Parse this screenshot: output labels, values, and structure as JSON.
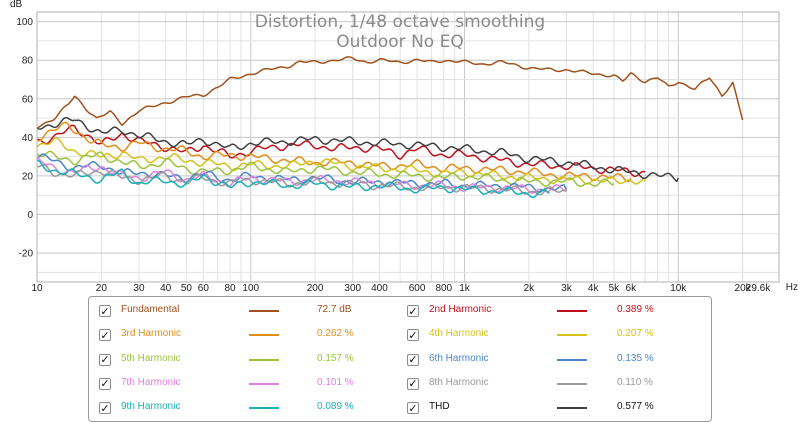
{
  "chart_data": {
    "type": "line",
    "title": "Distortion, 1/48 octave smoothing",
    "subtitle": "Outdoor No EQ",
    "y_unit": "dB",
    "x_unit": "Hz",
    "x_scale": "log",
    "xlim": [
      10,
      29600
    ],
    "ylim": [
      -35,
      105
    ],
    "y_ticks": [
      100,
      80,
      60,
      40,
      20,
      0,
      -20
    ],
    "x_ticks": [
      10,
      20,
      30,
      40,
      50,
      60,
      80,
      100,
      200,
      300,
      400,
      600,
      800,
      1000,
      2000,
      3000,
      4000,
      5000,
      6000,
      10000,
      20000,
      29600
    ],
    "x_tick_labels": [
      "10",
      "20",
      "30",
      "40",
      "50",
      "60",
      "80",
      "100",
      "200",
      "300",
      "400",
      "600",
      "800",
      "1k",
      "2k",
      "3k",
      "4k",
      "5k",
      "6k",
      "10k",
      "20k",
      "29.6k"
    ],
    "grid": true,
    "legend_position": "bottom",
    "series": [
      {
        "name": "Fundamental",
        "color": "#a0521c",
        "x": [
          10,
          12,
          14,
          15,
          17,
          19,
          22,
          25,
          30,
          35,
          40,
          50,
          60,
          70,
          80,
          100,
          120,
          150,
          170,
          200,
          250,
          300,
          350,
          400,
          500,
          600,
          700,
          800,
          1000,
          1200,
          1500,
          2000,
          2500,
          3000,
          4000,
          5000,
          5500,
          6000,
          7000,
          8000,
          9000,
          10000,
          12000,
          14000,
          16000,
          18000,
          20000
        ],
        "y": [
          45,
          50,
          57,
          61,
          55,
          50,
          53,
          47,
          54,
          56,
          58,
          61,
          62,
          66,
          70,
          73,
          75,
          77,
          79,
          79,
          80,
          81,
          79,
          80,
          79,
          80,
          79,
          80,
          79,
          78,
          79,
          76,
          75,
          75,
          73,
          72,
          69,
          73,
          69,
          71,
          66,
          69,
          65,
          71,
          62,
          68,
          49
        ]
      },
      {
        "name": "2nd Harmonic",
        "color": "#c0101c",
        "x": [
          10,
          12,
          15,
          18,
          20,
          25,
          30,
          40,
          50,
          60,
          80,
          100,
          150,
          200,
          250,
          300,
          400,
          500,
          600,
          800,
          1000,
          1500,
          2000,
          3000,
          4000,
          5000,
          6000,
          7000
        ],
        "y": [
          38,
          40,
          45,
          40,
          36,
          42,
          38,
          35,
          32,
          36,
          30,
          33,
          36,
          36,
          34,
          35,
          34,
          31,
          34,
          31,
          31,
          28,
          26,
          25,
          24,
          23,
          22,
          22
        ]
      },
      {
        "name": "3rd Harmonic",
        "color": "#e08e1a",
        "x": [
          10,
          12,
          14,
          16,
          18,
          20,
          25,
          30,
          40,
          50,
          60,
          80,
          100,
          150,
          200,
          300,
          400,
          600,
          800,
          1000,
          1500,
          2000,
          3000,
          4000,
          5000,
          6000
        ],
        "y": [
          40,
          44,
          46,
          42,
          38,
          36,
          35,
          37,
          34,
          33,
          30,
          31,
          30,
          28,
          27,
          27,
          25,
          26,
          24,
          24,
          23,
          22,
          20,
          20,
          19,
          19
        ]
      },
      {
        "name": "4th Harmonic",
        "color": "#d4c21a",
        "x": [
          10,
          12,
          15,
          20,
          25,
          30,
          40,
          50,
          60,
          80,
          100,
          150,
          200,
          300,
          400,
          600,
          800,
          1000,
          1500,
          2000,
          3000,
          4000,
          5000,
          6000,
          7000
        ],
        "y": [
          36,
          38,
          33,
          30,
          32,
          28,
          30,
          28,
          27,
          25,
          26,
          25,
          28,
          25,
          24,
          23,
          21,
          22,
          20,
          19,
          18,
          18,
          17,
          18,
          17
        ]
      },
      {
        "name": "5th Harmonic",
        "color": "#9cc43a",
        "x": [
          10,
          12,
          15,
          20,
          25,
          30,
          40,
          50,
          60,
          80,
          100,
          150,
          200,
          300,
          400,
          600,
          800,
          1000,
          1500,
          2000,
          3000,
          4000,
          5000
        ],
        "y": [
          32,
          30,
          28,
          31,
          27,
          25,
          27,
          24,
          22,
          23,
          25,
          22,
          24,
          22,
          21,
          20,
          19,
          20,
          18,
          17,
          17,
          16,
          16
        ]
      },
      {
        "name": "6th Harmonic",
        "color": "#4a86c8",
        "x": [
          10,
          12,
          15,
          20,
          25,
          30,
          40,
          50,
          60,
          80,
          100,
          150,
          200,
          300,
          400,
          600,
          800,
          1000,
          1500,
          2000,
          3000
        ],
        "y": [
          30,
          28,
          24,
          26,
          21,
          22,
          20,
          19,
          21,
          18,
          20,
          18,
          19,
          17,
          17,
          16,
          16,
          15,
          15,
          14,
          13
        ]
      },
      {
        "name": "7th Harmonic",
        "color": "#e080e0",
        "x": [
          10,
          12,
          15,
          20,
          25,
          30,
          40,
          50,
          60,
          80,
          100,
          150,
          200,
          300,
          400,
          600,
          800,
          1000,
          1500,
          2000,
          2500,
          3000
        ],
        "y": [
          28,
          24,
          22,
          25,
          20,
          19,
          22,
          18,
          20,
          16,
          19,
          17,
          18,
          17,
          16,
          15,
          15,
          14,
          14,
          13,
          13,
          13
        ]
      },
      {
        "name": "8th Harmonic",
        "color": "#9a9a9a",
        "x": [
          10,
          12,
          15,
          20,
          25,
          30,
          40,
          50,
          60,
          80,
          100,
          150,
          200,
          300,
          400,
          600,
          800,
          1000,
          1500,
          2000,
          2500,
          3000
        ],
        "y": [
          25,
          22,
          20,
          23,
          19,
          18,
          20,
          17,
          19,
          16,
          18,
          16,
          17,
          16,
          15,
          14,
          14,
          14,
          13,
          12,
          12,
          12
        ]
      },
      {
        "name": "9th Harmonic",
        "color": "#1ab0b8",
        "x": [
          10,
          12,
          15,
          20,
          25,
          30,
          40,
          50,
          60,
          80,
          100,
          150,
          200,
          300,
          400,
          600,
          800,
          1000,
          1500,
          2000,
          2500
        ],
        "y": [
          26,
          23,
          21,
          18,
          22,
          16,
          18,
          15,
          20,
          14,
          17,
          15,
          16,
          14,
          15,
          13,
          14,
          13,
          12,
          11,
          11
        ]
      },
      {
        "name": "THD",
        "color": "#404040",
        "x": [
          10,
          12,
          15,
          18,
          20,
          25,
          30,
          40,
          50,
          60,
          80,
          100,
          150,
          200,
          300,
          400,
          600,
          800,
          1000,
          1500,
          2000,
          3000,
          4000,
          5000,
          6000,
          7000,
          8000,
          10000
        ],
        "y": [
          45,
          47,
          49,
          45,
          42,
          44,
          41,
          38,
          36,
          39,
          34,
          37,
          38,
          39,
          38,
          37,
          36,
          35,
          34,
          32,
          29,
          27,
          25,
          23,
          22,
          21,
          20,
          19
        ]
      }
    ]
  },
  "legend": {
    "items": [
      {
        "label": "Fundamental",
        "value": "72.7 dB",
        "color": "#a0521c",
        "checked": true
      },
      {
        "label": "2nd Harmonic",
        "value": "0.389 %",
        "color": "#c0101c",
        "checked": true
      },
      {
        "label": "3rd Harmonic",
        "value": "0.262 %",
        "color": "#e08e1a",
        "checked": true
      },
      {
        "label": "4th Harmonic",
        "value": "0.207 %",
        "color": "#d4c21a",
        "checked": true
      },
      {
        "label": "5th Harmonic",
        "value": "0.157 %",
        "color": "#9cc43a",
        "checked": true
      },
      {
        "label": "6th Harmonic",
        "value": "0.135 %",
        "color": "#4a86c8",
        "checked": true
      },
      {
        "label": "7th Harmonic",
        "value": "0.101 %",
        "color": "#e080e0",
        "checked": true
      },
      {
        "label": "8th Harmonic",
        "value": "0.110 %",
        "color": "#9a9a9a",
        "checked": true
      },
      {
        "label": "9th Harmonic",
        "value": "0.089 %",
        "color": "#1ab0b8",
        "checked": true
      },
      {
        "label": "THD",
        "value": "0.577 %",
        "color": "#404040",
        "checked": true
      }
    ]
  }
}
